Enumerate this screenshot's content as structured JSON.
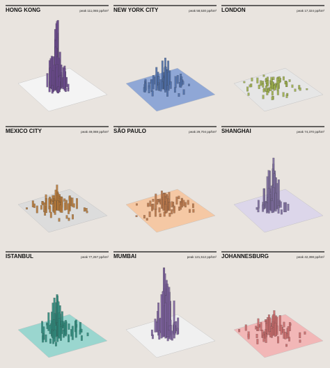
{
  "panels": [
    {
      "name": "HONG KONG",
      "peak": "peak 111,065 pp/km²"
    },
    {
      "name": "NEW YORK CITY",
      "peak": "peak 58,530 pp/km²"
    },
    {
      "name": "LONDON",
      "peak": "peak 17,324 pp/km²"
    },
    {
      "name": "MEXICO CITY",
      "peak": "peak 49,088 pp/km²"
    },
    {
      "name": "SÃO PAULO",
      "peak": "peak 29,704 pp/km²"
    },
    {
      "name": "SHANGHAI",
      "peak": "peak 74,370 pp/km²"
    },
    {
      "name": "ISTANBUL",
      "peak": "peak 77,267 pp/km²"
    },
    {
      "name": "MUMBAI",
      "peak": "peak 121,512 pp/km²"
    },
    {
      "name": "JOHANNESBURG",
      "peak": "peak 42,398 pp/km²"
    }
  ]
}
